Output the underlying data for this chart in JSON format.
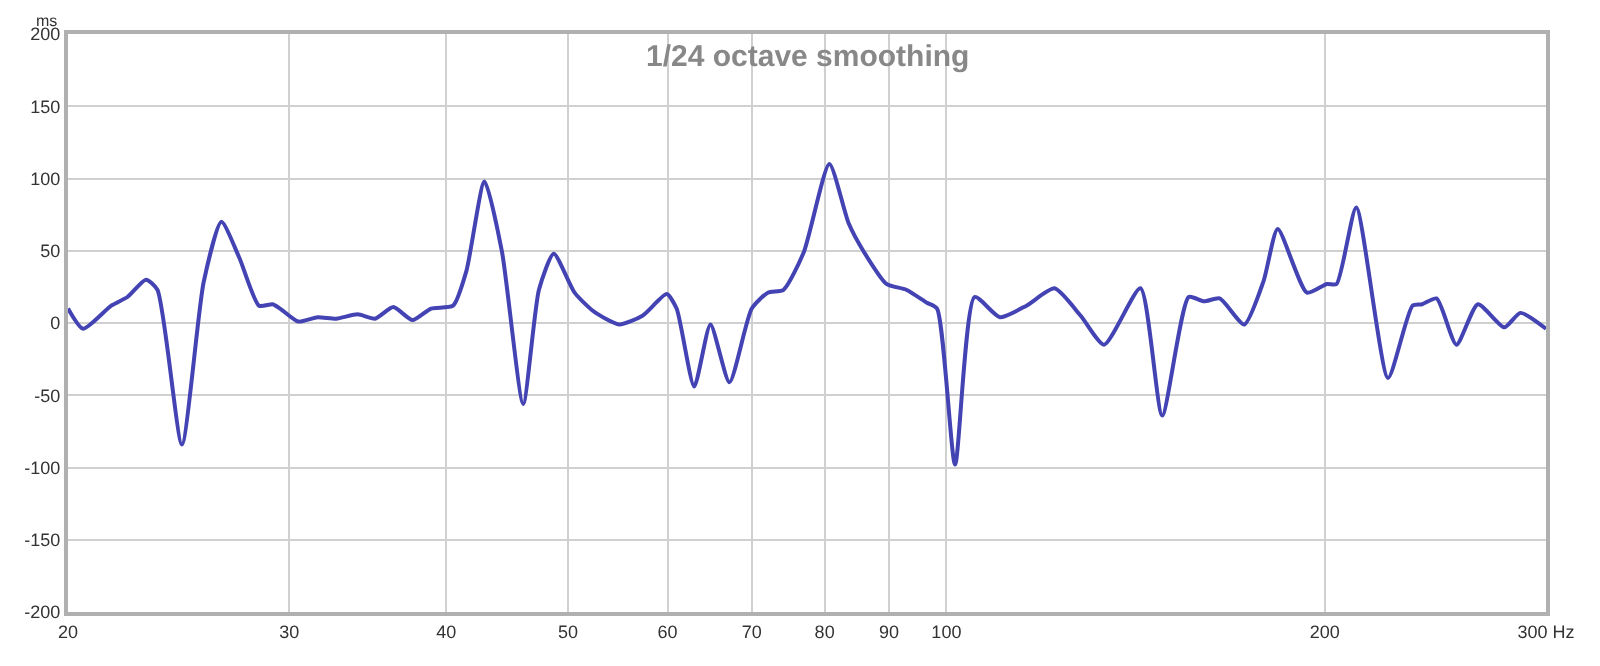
{
  "chart_data": {
    "type": "line",
    "title": "1/24 octave smoothing",
    "ylabel": "ms",
    "x": [
      20,
      20.56,
      21.65,
      22.3,
      23.07,
      23.56,
      24.64,
      25.64,
      26.49,
      27.38,
      28.38,
      29.1,
      29.5,
      30.5,
      31.6,
      32.7,
      34,
      35.1,
      36.3,
      37.6,
      38.9,
      40.5,
      41.5,
      42.9,
      44.3,
      46.05,
      47.4,
      48.7,
      50.6,
      52.4,
      54.9,
      57.3,
      59.9,
      61,
      63,
      64.9,
      67.2,
      70,
      72.1,
      74.2,
      77,
      80.7,
      83.6,
      86,
      89.6,
      92.9,
      96.5,
      98.3,
      101.6,
      105.3,
      110.3,
      115.8,
      121.9,
      127.9,
      133.5,
      142.7,
      148.5,
      155.9,
      160.3,
      165,
      172.6,
      178.8,
      183.5,
      193.6,
      200.8,
      204.4,
      211.9,
      224.6,
      234.9,
      239.1,
      245.5,
      254.6,
      264.8,
      277.9,
      286.3,
      300
    ],
    "series": [
      {
        "color": "#4343b3",
        "values": [
          10,
          -4,
          12,
          18,
          30,
          23,
          -84,
          28,
          70,
          45,
          12,
          13,
          10,
          1,
          4,
          3,
          6,
          3,
          11,
          2,
          10,
          12,
          36,
          98,
          49,
          -56,
          23,
          48,
          21,
          8,
          -1,
          5,
          20,
          10,
          -44,
          -1,
          -41,
          10,
          21,
          23,
          49,
          110,
          69,
          49,
          27,
          23,
          14,
          10,
          -98,
          18,
          4,
          12,
          24,
          5,
          -15,
          24,
          -64,
          18,
          15,
          17,
          -1,
          29,
          65,
          21,
          27,
          27,
          80,
          -38,
          12,
          13,
          17,
          -15,
          13,
          -3,
          7,
          -4
        ]
      }
    ],
    "log": "x",
    "xlim": [
      20,
      300
    ],
    "ylim": [
      -200,
      200
    ],
    "xticks": [
      20,
      30,
      40,
      50,
      60,
      70,
      80,
      90,
      100,
      200,
      {
        "value": 300,
        "label": "300 Hz"
      }
    ],
    "yticks": [
      -200,
      -150,
      -100,
      -50,
      0,
      50,
      100,
      150,
      200
    ],
    "grid": true,
    "marker": "none",
    "line_style": "solid"
  }
}
